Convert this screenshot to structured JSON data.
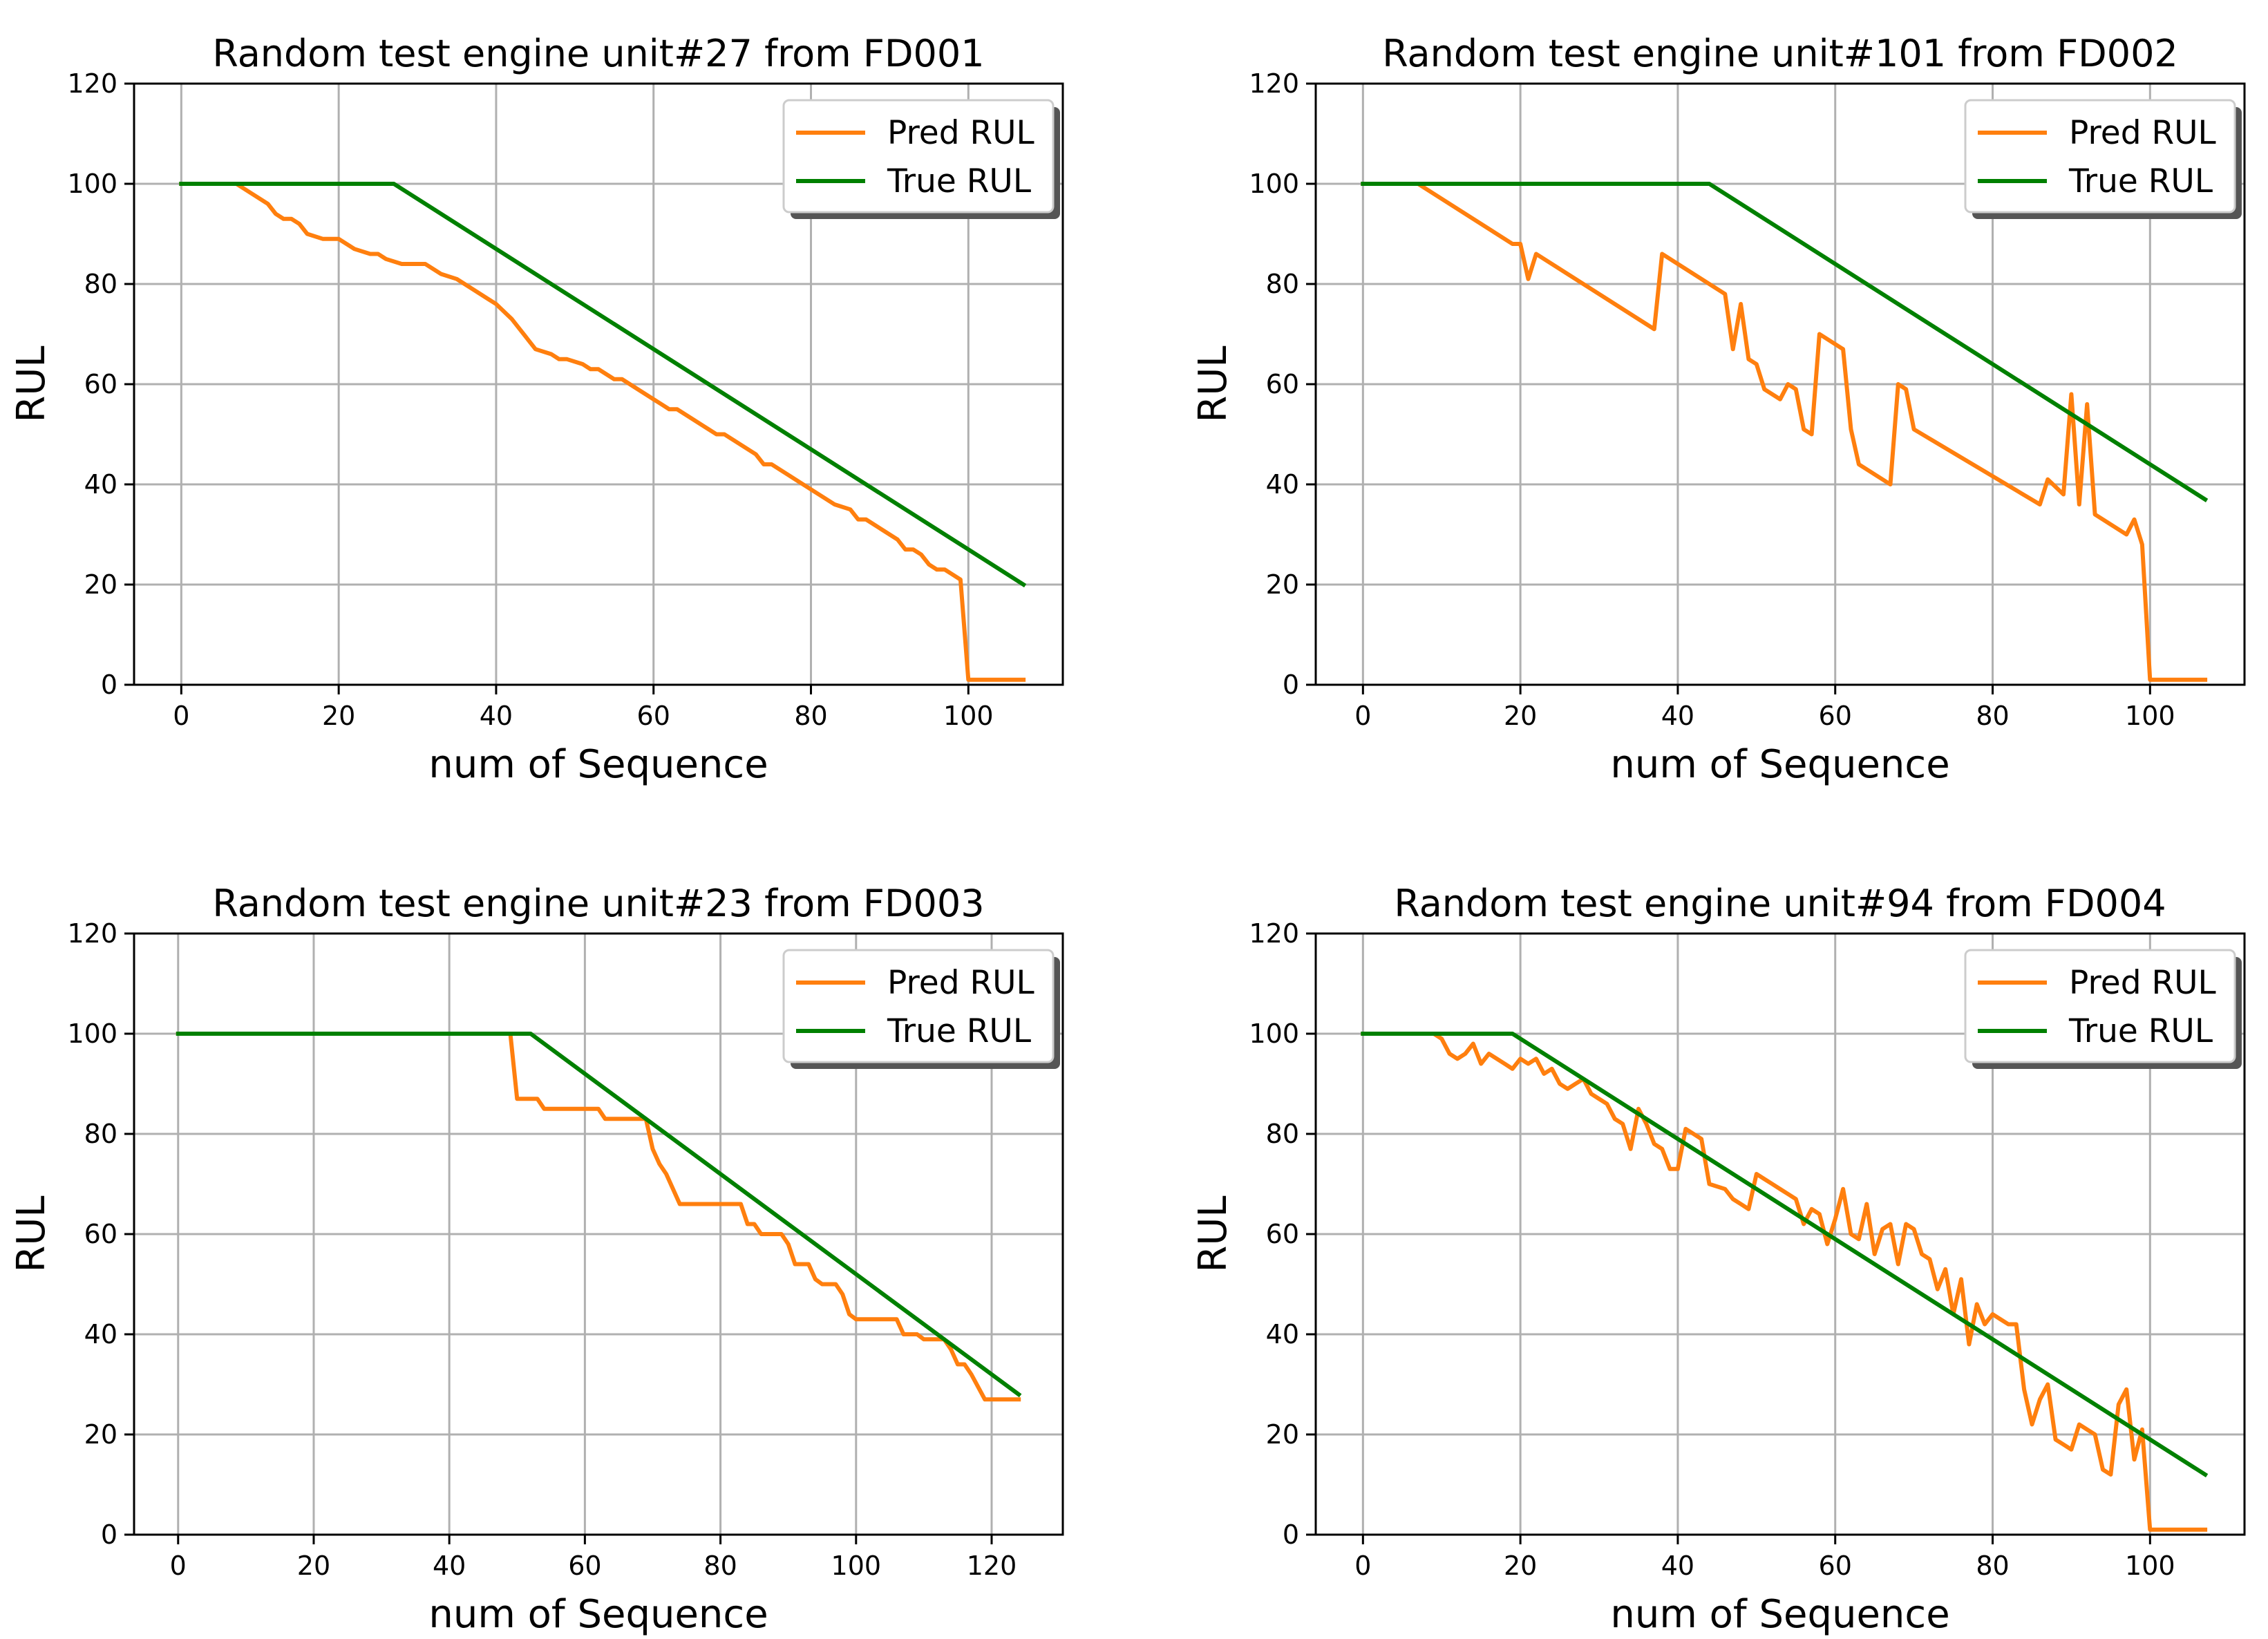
{
  "chart_data": [
    {
      "type": "line",
      "title": "Random test engine unit#27 from FD001",
      "xlabel": "num of Sequence",
      "ylabel": "RUL",
      "xlim": [
        -6,
        112
      ],
      "ylim": [
        0,
        120
      ],
      "xticks": [
        0,
        20,
        40,
        60,
        80,
        100
      ],
      "yticks": [
        0,
        20,
        40,
        60,
        80,
        100,
        120
      ],
      "grid": true,
      "legend_position": "top-right",
      "series": [
        {
          "name": "Pred RUL",
          "color": "#ff7f0e",
          "points": [
            [
              0,
              100
            ],
            [
              7,
              100
            ],
            [
              9,
              98
            ],
            [
              11,
              96
            ],
            [
              12,
              94
            ],
            [
              13,
              93
            ],
            [
              14,
              93
            ],
            [
              15,
              92
            ],
            [
              16,
              90
            ],
            [
              18,
              89
            ],
            [
              20,
              89
            ],
            [
              22,
              87
            ],
            [
              24,
              86
            ],
            [
              25,
              86
            ],
            [
              26,
              85
            ],
            [
              28,
              84
            ],
            [
              30,
              84
            ],
            [
              31,
              84
            ],
            [
              33,
              82
            ],
            [
              35,
              81
            ],
            [
              37,
              79
            ],
            [
              39,
              77
            ],
            [
              40,
              76
            ],
            [
              42,
              73
            ],
            [
              43,
              71
            ],
            [
              44,
              69
            ],
            [
              45,
              67
            ],
            [
              47,
              66
            ],
            [
              48,
              65
            ],
            [
              49,
              65
            ],
            [
              51,
              64
            ],
            [
              52,
              63
            ],
            [
              53,
              63
            ],
            [
              55,
              61
            ],
            [
              56,
              61
            ],
            [
              58,
              59
            ],
            [
              60,
              57
            ],
            [
              61,
              56
            ],
            [
              62,
              55
            ],
            [
              63,
              55
            ],
            [
              65,
              53
            ],
            [
              67,
              51
            ],
            [
              68,
              50
            ],
            [
              69,
              50
            ],
            [
              71,
              48
            ],
            [
              73,
              46
            ],
            [
              74,
              44
            ],
            [
              75,
              44
            ],
            [
              77,
              42
            ],
            [
              79,
              40
            ],
            [
              81,
              38
            ],
            [
              83,
              36
            ],
            [
              85,
              35
            ],
            [
              86,
              33
            ],
            [
              87,
              33
            ],
            [
              89,
              31
            ],
            [
              91,
              29
            ],
            [
              92,
              27
            ],
            [
              93,
              27
            ],
            [
              94,
              26
            ],
            [
              95,
              24
            ],
            [
              96,
              23
            ],
            [
              97,
              23
            ],
            [
              98,
              22
            ],
            [
              99,
              21
            ],
            [
              100,
              1
            ],
            [
              107,
              1
            ]
          ]
        },
        {
          "name": "True RUL",
          "color": "#008000",
          "points": [
            [
              0,
              100
            ],
            [
              27,
              100
            ],
            [
              107,
              20
            ]
          ]
        }
      ]
    },
    {
      "type": "line",
      "title": "Random test engine unit#101 from FD002",
      "xlabel": "num of Sequence",
      "ylabel": "RUL",
      "xlim": [
        -6,
        112
      ],
      "ylim": [
        0,
        120
      ],
      "xticks": [
        0,
        20,
        40,
        60,
        80,
        100
      ],
      "yticks": [
        0,
        20,
        40,
        60,
        80,
        100,
        120
      ],
      "grid": true,
      "legend_position": "top-right",
      "series": [
        {
          "name": "Pred RUL",
          "color": "#ff7f0e",
          "points": [
            [
              0,
              100
            ],
            [
              7,
              100
            ],
            [
              19,
              88
            ],
            [
              20,
              88
            ],
            [
              21,
              81
            ],
            [
              22,
              86
            ],
            [
              37,
              71
            ],
            [
              38,
              86
            ],
            [
              46,
              78
            ],
            [
              47,
              67
            ],
            [
              48,
              76
            ],
            [
              49,
              65
            ],
            [
              50,
              64
            ],
            [
              51,
              59
            ],
            [
              53,
              57
            ],
            [
              54,
              60
            ],
            [
              55,
              59
            ],
            [
              56,
              51
            ],
            [
              57,
              50
            ],
            [
              58,
              70
            ],
            [
              61,
              67
            ],
            [
              62,
              51
            ],
            [
              63,
              44
            ],
            [
              67,
              40
            ],
            [
              68,
              60
            ],
            [
              69,
              59
            ],
            [
              70,
              51
            ],
            [
              86,
              36
            ],
            [
              87,
              41
            ],
            [
              89,
              38
            ],
            [
              90,
              58
            ],
            [
              91,
              36
            ],
            [
              92,
              56
            ],
            [
              93,
              34
            ],
            [
              97,
              30
            ],
            [
              98,
              33
            ],
            [
              99,
              28
            ],
            [
              100,
              1
            ],
            [
              107,
              1
            ]
          ]
        },
        {
          "name": "True RUL",
          "color": "#008000",
          "points": [
            [
              0,
              100
            ],
            [
              44,
              100
            ],
            [
              107,
              37
            ]
          ]
        }
      ]
    },
    {
      "type": "line",
      "title": "Random test engine unit#23 from FD003",
      "xlabel": "num of Sequence",
      "ylabel": "RUL",
      "xlim": [
        -6.5,
        130.5
      ],
      "ylim": [
        0,
        120
      ],
      "xticks": [
        0,
        20,
        40,
        60,
        80,
        100,
        120
      ],
      "yticks": [
        0,
        20,
        40,
        60,
        80,
        100,
        120
      ],
      "grid": true,
      "legend_position": "top-right",
      "series": [
        {
          "name": "Pred RUL",
          "color": "#ff7f0e",
          "points": [
            [
              0,
              100
            ],
            [
              49,
              100
            ],
            [
              50,
              87
            ],
            [
              53,
              87
            ],
            [
              54,
              85
            ],
            [
              62,
              85
            ],
            [
              63,
              83
            ],
            [
              69,
              83
            ],
            [
              70,
              77
            ],
            [
              71,
              74
            ],
            [
              72,
              72
            ],
            [
              74,
              66
            ],
            [
              83,
              66
            ],
            [
              84,
              62
            ],
            [
              85,
              62
            ],
            [
              86,
              60
            ],
            [
              89,
              60
            ],
            [
              90,
              58
            ],
            [
              91,
              54
            ],
            [
              93,
              54
            ],
            [
              94,
              51
            ],
            [
              95,
              50
            ],
            [
              97,
              50
            ],
            [
              98,
              48
            ],
            [
              99,
              44
            ],
            [
              100,
              43
            ],
            [
              106,
              43
            ],
            [
              107,
              40
            ],
            [
              109,
              40
            ],
            [
              110,
              39
            ],
            [
              113,
              39
            ],
            [
              114,
              37
            ],
            [
              115,
              34
            ],
            [
              116,
              34
            ],
            [
              117,
              32
            ],
            [
              119,
              27
            ],
            [
              124,
              27
            ]
          ]
        },
        {
          "name": "True RUL",
          "color": "#008000",
          "points": [
            [
              0,
              100
            ],
            [
              52,
              100
            ],
            [
              124,
              28
            ]
          ]
        }
      ]
    },
    {
      "type": "line",
      "title": "Random test engine unit#94 from FD004",
      "xlabel": "num of Sequence",
      "ylabel": "RUL",
      "xlim": [
        -6,
        112
      ],
      "ylim": [
        0,
        120
      ],
      "xticks": [
        0,
        20,
        40,
        60,
        80,
        100
      ],
      "yticks": [
        0,
        20,
        40,
        60,
        80,
        100,
        120
      ],
      "grid": true,
      "legend_position": "top-right",
      "series": [
        {
          "name": "Pred RUL",
          "color": "#ff7f0e",
          "points": [
            [
              0,
              100
            ],
            [
              9,
              100
            ],
            [
              10,
              99
            ],
            [
              11,
              96
            ],
            [
              12,
              95
            ],
            [
              13,
              96
            ],
            [
              14,
              98
            ],
            [
              15,
              94
            ],
            [
              16,
              96
            ],
            [
              18,
              94
            ],
            [
              19,
              93
            ],
            [
              20,
              95
            ],
            [
              21,
              94
            ],
            [
              22,
              95
            ],
            [
              23,
              92
            ],
            [
              24,
              93
            ],
            [
              25,
              90
            ],
            [
              26,
              89
            ],
            [
              27,
              90
            ],
            [
              28,
              91
            ],
            [
              29,
              88
            ],
            [
              30,
              87
            ],
            [
              31,
              86
            ],
            [
              32,
              83
            ],
            [
              33,
              82
            ],
            [
              34,
              77
            ],
            [
              35,
              85
            ],
            [
              36,
              82
            ],
            [
              37,
              78
            ],
            [
              38,
              77
            ],
            [
              39,
              73
            ],
            [
              40,
              73
            ],
            [
              41,
              81
            ],
            [
              42,
              80
            ],
            [
              43,
              79
            ],
            [
              44,
              70
            ],
            [
              46,
              69
            ],
            [
              47,
              67
            ],
            [
              48,
              66
            ],
            [
              49,
              65
            ],
            [
              50,
              72
            ],
            [
              51,
              71
            ],
            [
              52,
              70
            ],
            [
              53,
              69
            ],
            [
              54,
              68
            ],
            [
              55,
              67
            ],
            [
              56,
              62
            ],
            [
              57,
              65
            ],
            [
              58,
              64
            ],
            [
              59,
              58
            ],
            [
              60,
              63
            ],
            [
              61,
              69
            ],
            [
              62,
              60
            ],
            [
              63,
              59
            ],
            [
              64,
              66
            ],
            [
              65,
              56
            ],
            [
              66,
              61
            ],
            [
              67,
              62
            ],
            [
              68,
              54
            ],
            [
              69,
              62
            ],
            [
              70,
              61
            ],
            [
              71,
              56
            ],
            [
              72,
              55
            ],
            [
              73,
              49
            ],
            [
              74,
              53
            ],
            [
              75,
              44
            ],
            [
              76,
              51
            ],
            [
              77,
              38
            ],
            [
              78,
              46
            ],
            [
              79,
              42
            ],
            [
              80,
              44
            ],
            [
              81,
              43
            ],
            [
              82,
              42
            ],
            [
              83,
              42
            ],
            [
              84,
              29
            ],
            [
              85,
              22
            ],
            [
              86,
              27
            ],
            [
              87,
              30
            ],
            [
              88,
              19
            ],
            [
              89,
              18
            ],
            [
              90,
              17
            ],
            [
              91,
              22
            ],
            [
              92,
              21
            ],
            [
              93,
              20
            ],
            [
              94,
              13
            ],
            [
              95,
              12
            ],
            [
              96,
              26
            ],
            [
              97,
              29
            ],
            [
              98,
              15
            ],
            [
              99,
              21
            ],
            [
              100,
              1
            ],
            [
              107,
              1
            ]
          ]
        },
        {
          "name": "True RUL",
          "color": "#008000",
          "points": [
            [
              0,
              100
            ],
            [
              19,
              100
            ],
            [
              107,
              12
            ]
          ]
        }
      ]
    }
  ]
}
